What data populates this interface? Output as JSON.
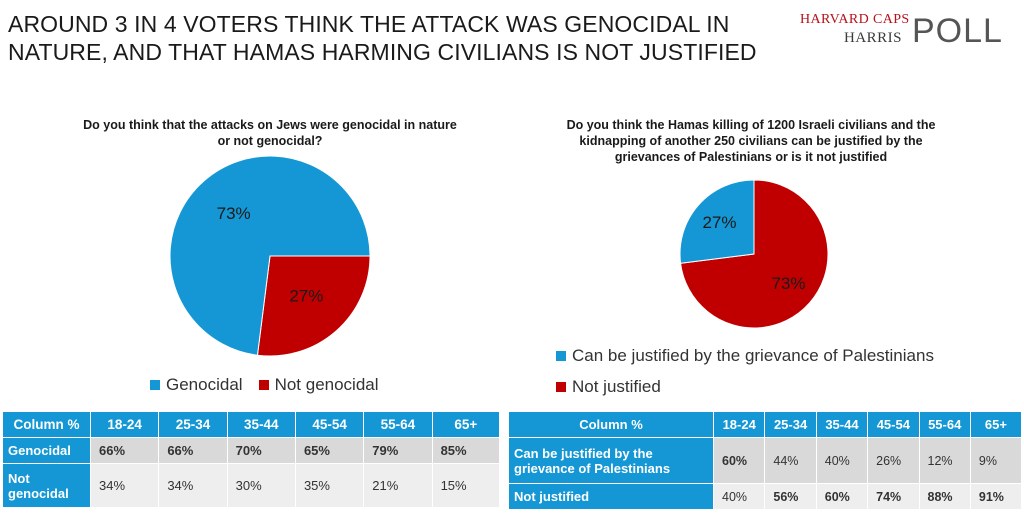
{
  "headline": "AROUND 3 IN 4 VOTERS THINK THE ATTACK WAS GENOCIDAL IN NATURE, AND THAT HAMAS HARMING CIVILIANS IS NOT JUSTIFIED",
  "logo": {
    "line1": "HARVARD CAPS",
    "line2": "HARRIS",
    "poll": "POLL"
  },
  "colors": {
    "blue": "#1497d4",
    "red": "#c00000",
    "header_bg": "#1497d4"
  },
  "chart_data": [
    {
      "type": "pie",
      "title": "Do you think that the attacks on Jews were genocidal in nature or not genocidal?",
      "categories": [
        "Genocidal",
        "Not genocidal"
      ],
      "values": [
        73,
        27
      ],
      "labels": [
        "73%",
        "27%"
      ],
      "colors": [
        "#1497d4",
        "#c00000"
      ],
      "legend": "bottom"
    },
    {
      "type": "pie",
      "title": "Do you think the Hamas killing of 1200 Israeli civilians and the kidnapping of another 250 civilians can be justified by the grievances of Palestinians or is it not justified",
      "categories": [
        "Can be justified by the grievance of Palestinians",
        "Not justified"
      ],
      "values": [
        27,
        73
      ],
      "labels": [
        "27%",
        "73%"
      ],
      "colors": [
        "#1497d4",
        "#c00000"
      ],
      "legend": "bottom"
    },
    {
      "type": "table",
      "header": [
        "Column %",
        "18-24",
        "25-34",
        "35-44",
        "45-54",
        "55-64",
        "65+"
      ],
      "rows": [
        {
          "label": "Genocidal",
          "values": [
            "66%",
            "66%",
            "70%",
            "65%",
            "79%",
            "85%"
          ],
          "bold": [
            true,
            true,
            true,
            true,
            true,
            true
          ]
        },
        {
          "label": "Not genocidal",
          "values": [
            "34%",
            "34%",
            "30%",
            "35%",
            "21%",
            "15%"
          ],
          "bold": [
            false,
            false,
            false,
            false,
            false,
            false
          ]
        }
      ]
    },
    {
      "type": "table",
      "header": [
        "Column %",
        "18-24",
        "25-34",
        "35-44",
        "45-54",
        "55-64",
        "65+"
      ],
      "rows": [
        {
          "label": "Can be justified by the grievance of Palestinians",
          "values": [
            "60%",
            "44%",
            "40%",
            "26%",
            "12%",
            "9%"
          ],
          "bold": [
            true,
            false,
            false,
            false,
            false,
            false
          ]
        },
        {
          "label": "Not justified",
          "values": [
            "40%",
            "56%",
            "60%",
            "74%",
            "88%",
            "91%"
          ],
          "bold": [
            false,
            true,
            true,
            true,
            true,
            true
          ]
        }
      ]
    }
  ]
}
